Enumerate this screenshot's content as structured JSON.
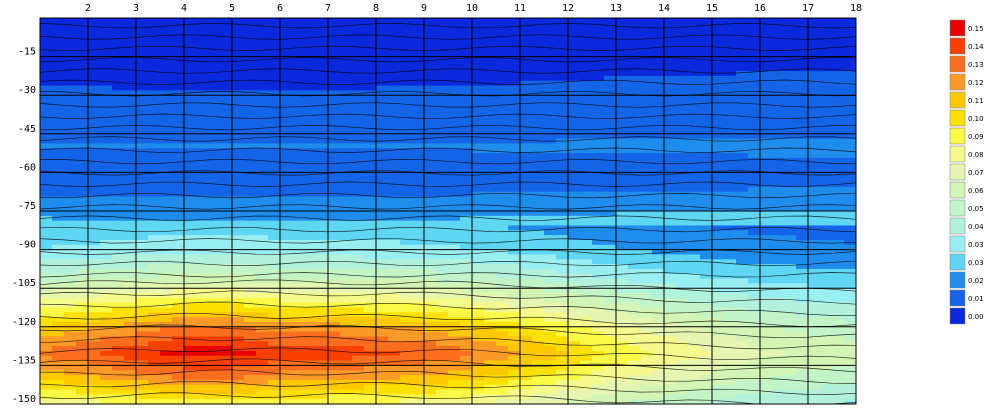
{
  "chart_data": {
    "type": "heatmap",
    "title": "",
    "xlabel": "",
    "ylabel": "",
    "x": [
      1,
      2,
      3,
      4,
      5,
      6,
      7,
      8,
      9,
      10,
      11,
      12,
      13,
      14,
      15,
      16,
      17,
      18
    ],
    "x_tick_labels": [
      "2",
      "3",
      "4",
      "5",
      "6",
      "7",
      "8",
      "9",
      "10",
      "11",
      "12",
      "13",
      "14",
      "15",
      "16",
      "17",
      "18"
    ],
    "xlim": [
      1,
      18
    ],
    "y_tick_values": [
      -15,
      -30,
      -45,
      -60,
      -75,
      -90,
      -105,
      -120,
      -135,
      -150
    ],
    "y_tick_labels": [
      "-15",
      "-30",
      "-45",
      "-60",
      "-75",
      "-90",
      "-105",
      "-120",
      "-135",
      "-150"
    ],
    "ylim": [
      -150,
      0
    ],
    "grid": true,
    "contour_lines": true,
    "legend_placement": "right",
    "colorbar": {
      "labels": [
        "0.15",
        "0.14",
        "0.13",
        "0.12",
        "0.11",
        "0.10",
        "0.09",
        "0.08",
        "0.07",
        "0.06",
        "0.05",
        "0.04",
        "0.03",
        "0.03",
        "0.02",
        "0.01",
        "0.00"
      ],
      "colors": [
        "#e80000",
        "#f84000",
        "#fa6e1e",
        "#fc9a28",
        "#fcc800",
        "#fbe000",
        "#fafa46",
        "#f6fa8c",
        "#e6f6b0",
        "#d2f4b4",
        "#c2f4c8",
        "#b2f2dc",
        "#98eef0",
        "#5ed6f4",
        "#1e8cec",
        "#1464e8",
        "#0a28dc"
      ]
    },
    "profile_depths": [
      0,
      -10,
      -20,
      -30,
      -40,
      -50,
      -60,
      -70,
      -80,
      -90,
      -100,
      -110,
      -120,
      -130,
      -140,
      -150
    ],
    "profile_values": [
      0.0,
      0.005,
      0.008,
      0.01,
      0.01,
      0.02,
      0.01,
      0.02,
      0.03,
      0.04,
      0.06,
      0.09,
      0.12,
      0.14,
      0.12,
      0.09
    ],
    "column_factors": [
      0.95,
      1.0,
      1.05,
      1.1,
      1.1,
      1.05,
      1.05,
      1.02,
      1.0,
      0.95,
      0.88,
      0.8,
      0.72,
      0.66,
      0.6,
      0.55,
      0.52,
      0.5
    ]
  }
}
